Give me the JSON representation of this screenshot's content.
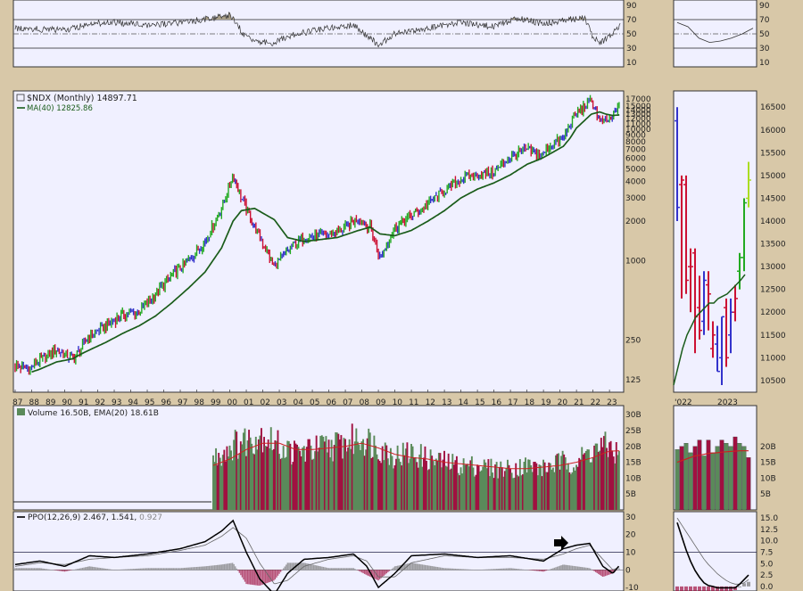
{
  "colors": {
    "frame": "#d8c8a8",
    "panel": "#f0f0ff",
    "up": "#22aa22",
    "down": "#cc1133",
    "neutral": "#3333cc",
    "ma": "#1a5c1a",
    "vol_up": "#5a8a5a",
    "vol_down": "#a01040",
    "ema": "#cc2020",
    "rsi_fill": "#a89e88"
  },
  "chart_data": [
    {
      "type": "line",
      "id": "rsi",
      "yticks": [
        10,
        30,
        50,
        70,
        90
      ],
      "ylim": [
        0,
        100
      ],
      "levels": [
        30,
        70
      ],
      "midline": 50,
      "x": [
        1987.0,
        1990.0,
        1991.5,
        1993.0,
        1995.0,
        1997.0,
        1999.0,
        2000.0,
        2000.3,
        2001.0,
        2002.5,
        2004.0,
        2006.0,
        2007.5,
        2008.0,
        2009.0,
        2010.0,
        2012.0,
        2014.0,
        2016.0,
        2017.5,
        2019.0,
        2020.5,
        2021.5,
        2022.0,
        2022.4,
        2022.8,
        2023.2,
        2023.6
      ],
      "y": [
        58,
        55,
        64,
        66,
        62,
        66,
        72,
        76,
        68,
        44,
        36,
        50,
        58,
        62,
        54,
        34,
        50,
        58,
        66,
        60,
        72,
        64,
        70,
        73,
        44,
        38,
        42,
        52,
        62
      ],
      "zoom_y": [
        66,
        60,
        44,
        38,
        40,
        44,
        50,
        58
      ]
    },
    {
      "type": "line",
      "id": "price",
      "title": "$NDX (Monthly) 14897.71",
      "legend": "MA(40) 12825.86",
      "yscale": "log",
      "ylim": [
        100,
        20000
      ],
      "yticks": [
        "17000",
        "15000",
        "14000",
        "13000",
        "12000",
        "11000",
        "10000",
        "9000",
        "8000",
        "7000",
        "6000",
        "5000",
        "4000",
        "3000",
        "2000",
        "1000",
        "250",
        "125"
      ],
      "ytick_values": [
        17000,
        15000,
        14000,
        13000,
        12000,
        11000,
        10000,
        9000,
        8000,
        7000,
        6000,
        5000,
        4000,
        3000,
        2000,
        1000,
        250,
        125
      ],
      "categories": [
        "87",
        "88",
        "89",
        "90",
        "91",
        "92",
        "93",
        "94",
        "95",
        "96",
        "97",
        "98",
        "99",
        "00",
        "01",
        "02",
        "03",
        "04",
        "05",
        "06",
        "07",
        "08",
        "09",
        "10",
        "11",
        "12",
        "13",
        "14",
        "15",
        "16",
        "17",
        "18",
        "19",
        "20",
        "21",
        "22",
        "23"
      ],
      "x": [
        1987.0,
        1987.8,
        1988.5,
        1989.5,
        1990.5,
        1990.8,
        1991.5,
        1992.5,
        1993.5,
        1994.5,
        1995.5,
        1996.5,
        1997.5,
        1998.5,
        1999.5,
        2000.2,
        2000.7,
        2001.5,
        2002.7,
        2003.5,
        2004.5,
        2005.5,
        2006.5,
        2007.8,
        2008.5,
        2009.1,
        2010.0,
        2011.0,
        2012.0,
        2013.0,
        2014.0,
        2015.0,
        2016.0,
        2017.0,
        2018.0,
        2018.9,
        2019.5,
        2020.2,
        2020.6,
        2021.0,
        2021.9,
        2022.4,
        2022.8,
        2023.2,
        2023.6
      ],
      "y": [
        160,
        150,
        175,
        210,
        180,
        200,
        270,
        320,
        390,
        410,
        560,
        780,
        1000,
        1400,
        2500,
        4600,
        3000,
        1800,
        900,
        1200,
        1500,
        1550,
        1650,
        2100,
        1800,
        1050,
        1800,
        2200,
        2700,
        3400,
        4200,
        4500,
        4700,
        6200,
        7000,
        6300,
        7800,
        8300,
        11000,
        13000,
        16500,
        11500,
        11300,
        12500,
        14900
      ],
      "ma": [
        130,
        140,
        150,
        170,
        180,
        190,
        210,
        240,
        280,
        320,
        380,
        480,
        620,
        820,
        1250,
        2000,
        2400,
        2500,
        2050,
        1500,
        1400,
        1450,
        1500,
        1700,
        1800,
        1600,
        1550,
        1700,
        2000,
        2400,
        3000,
        3500,
        3900,
        4500,
        5400,
        6000,
        6600,
        7400,
        8500,
        10200,
        13000,
        13500,
        13000,
        12700,
        12826
      ],
      "zoom_months": 17,
      "zoom_xlabels": [
        "'022",
        "2023"
      ],
      "zoom_yticks": [
        "16500",
        "16000",
        "15500",
        "15000",
        "14500",
        "14000",
        "13500",
        "13000",
        "12500",
        "12000",
        "11500",
        "11000",
        "10500"
      ],
      "zoom_ytick_values": [
        16500,
        16000,
        15500,
        15000,
        14500,
        14000,
        13500,
        13000,
        12500,
        12000,
        11500,
        11000,
        10500
      ],
      "zoom_bars": [
        {
          "h": 16500,
          "l": 14000,
          "o": 16200,
          "c": 14300,
          "col": "neutral"
        },
        {
          "h": 15000,
          "l": 12300,
          "o": 14800,
          "c": 14900,
          "col": "down"
        },
        {
          "h": 15000,
          "l": 12400,
          "o": 14800,
          "c": 12700,
          "col": "down"
        },
        {
          "h": 13400,
          "l": 12000,
          "o": 13000,
          "c": 13000,
          "col": "down"
        },
        {
          "h": 13400,
          "l": 11100,
          "o": 13300,
          "c": 11900,
          "col": "down"
        },
        {
          "h": 12800,
          "l": 11400,
          "o": 12100,
          "c": 11600,
          "col": "down"
        },
        {
          "h": 12900,
          "l": 11500,
          "o": 11800,
          "c": 12700,
          "col": "neutral"
        },
        {
          "h": 12900,
          "l": 11600,
          "o": 12600,
          "c": 12400,
          "col": "down"
        },
        {
          "h": 11800,
          "l": 11000,
          "o": 11200,
          "c": 11500,
          "col": "down"
        },
        {
          "h": 11700,
          "l": 10700,
          "o": 11300,
          "c": 10700,
          "col": "neutral"
        },
        {
          "h": 11900,
          "l": 10400,
          "o": 11000,
          "c": 11900,
          "col": "neutral"
        },
        {
          "h": 12300,
          "l": 10800,
          "o": 12100,
          "c": 11000,
          "col": "down"
        },
        {
          "h": 12300,
          "l": 11100,
          "o": 11500,
          "c": 12000,
          "col": "neutral"
        },
        {
          "h": 12600,
          "l": 11800,
          "o": 12000,
          "c": 12300,
          "col": "down"
        },
        {
          "h": 13300,
          "l": 12500,
          "o": 12900,
          "c": 13200,
          "col": "up"
        },
        {
          "h": 14500,
          "l": 12900,
          "o": 13200,
          "c": 14400,
          "col": "up"
        },
        {
          "h": 15300,
          "l": 14300,
          "o": 14500,
          "c": 14900,
          "col": "lime"
        }
      ],
      "zoom_ma": [
        10400,
        10800,
        11200,
        11500,
        11700,
        11900,
        12000,
        12100,
        12200,
        12200,
        12300,
        12350,
        12400,
        12500,
        12600,
        12700,
        12826
      ]
    },
    {
      "type": "bar",
      "id": "volume",
      "title": "Volume 16.50B, EMA(20) 18.61B",
      "yticks": [
        "30B",
        "25B",
        "20B",
        "15B",
        "10B",
        "5B"
      ],
      "ytick_values": [
        30,
        25,
        20,
        15,
        10,
        5
      ],
      "zoom_yticks": [
        "20B",
        "15B",
        "10B",
        "5B"
      ],
      "zoom_ytick_values": [
        20,
        15,
        10,
        5
      ],
      "ylim": [
        0,
        32
      ],
      "start": 1999.0,
      "x": [
        1999.0,
        2000.0,
        2001.0,
        2002.0,
        2003.0,
        2004.0,
        2005.0,
        2006.0,
        2007.0,
        2008.0,
        2009.0,
        2010.0,
        2011.0,
        2012.0,
        2013.0,
        2014.0,
        2015.0,
        2016.0,
        2017.0,
        2018.0,
        2019.0,
        2020.0,
        2021.0,
        2022.0,
        2023.0,
        2023.6
      ],
      "y": [
        16,
        20,
        22,
        24,
        20,
        18,
        19,
        20,
        21,
        23,
        20,
        17,
        18,
        16,
        15,
        14,
        14,
        13,
        13,
        14,
        13,
        15,
        15,
        19,
        20,
        17
      ],
      "ema": [
        14,
        16,
        19,
        21,
        21,
        19,
        19,
        19.5,
        20,
        21,
        19.5,
        17.5,
        16.5,
        16,
        15,
        14.5,
        14,
        13.5,
        13,
        13,
        13.5,
        14,
        15,
        16.5,
        18.5,
        18.6
      ],
      "zoom_y": [
        19,
        20,
        21,
        18,
        20,
        22,
        17,
        22,
        18,
        20,
        22,
        21,
        20,
        23,
        21,
        20,
        16.5
      ],
      "zoom_ema": [
        15,
        15.5,
        16,
        16.5,
        17,
        17.2,
        17.5,
        17.8,
        17.9,
        18,
        18.2,
        18.3,
        18.4,
        18.5,
        18.6,
        18.6,
        18.61
      ]
    },
    {
      "type": "line",
      "id": "ppo",
      "title": "PPO(12,26,9) 2.467, 1.541, 0.927",
      "title_parts": [
        "PPO(12,26,9) 2.467, 1.541,",
        " 0.927"
      ],
      "yticks": [
        "30",
        "20",
        "10",
        "0",
        "-10"
      ],
      "ytick_values": [
        30,
        20,
        10,
        0,
        -10
      ],
      "zoom_yticks": [
        "15.0",
        "12.5",
        "10.0",
        "7.5",
        "5.0",
        "2.5",
        "0.0"
      ],
      "zoom_ytick_values": [
        15,
        12.5,
        10,
        7.5,
        5,
        2.5,
        0
      ],
      "ylim": [
        -12,
        32
      ],
      "zoom_ylim": [
        -1,
        16
      ],
      "zoom_level": 7.5,
      "x": [
        1987.0,
        1988.5,
        1990.0,
        1991.5,
        1993.0,
        1995.0,
        1997.0,
        1998.5,
        1999.5,
        2000.2,
        2001.0,
        2001.8,
        2002.7,
        2003.5,
        2004.5,
        2006.0,
        2007.5,
        2008.3,
        2009.0,
        2010.0,
        2011.0,
        2013.0,
        2015.0,
        2017.0,
        2019.0,
        2020.2,
        2021.0,
        2021.8,
        2022.6,
        2023.2,
        2023.6
      ],
      "ppo": [
        3,
        5,
        2,
        8,
        7,
        9,
        12,
        16,
        22,
        28,
        10,
        -5,
        -14,
        -2,
        6,
        7,
        9,
        2,
        -10,
        -2,
        8,
        9,
        7,
        8,
        5,
        12,
        14,
        15,
        2,
        -2,
        2.5
      ],
      "signal": [
        2,
        4,
        3,
        6,
        7,
        8,
        11,
        14,
        19,
        24,
        18,
        4,
        -8,
        -6,
        2,
        6,
        8,
        5,
        -4,
        -4,
        4,
        8,
        7,
        7,
        6,
        9,
        12,
        14,
        6,
        0,
        1.5
      ],
      "zoom_ppo": [
        14,
        11,
        8,
        5.5,
        3.5,
        2,
        0.8,
        0.2,
        0,
        -0.3,
        -0.3,
        -0.3,
        -0.3,
        -0.3,
        0.5,
        1.5,
        2.5
      ],
      "zoom_signal": [
        15,
        13.5,
        12,
        10.5,
        9,
        7.5,
        6,
        4.8,
        3.8,
        2.8,
        2,
        1.3,
        0.8,
        0.5,
        0.5,
        0.8,
        1.5
      ]
    }
  ]
}
